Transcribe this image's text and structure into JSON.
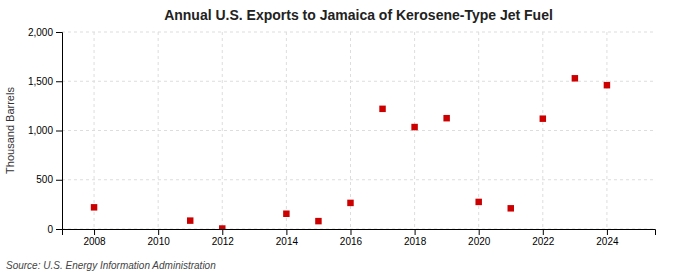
{
  "chart_data": {
    "type": "scatter",
    "title": "Annual U.S. Exports to Jamaica of Kerosene-Type Jet Fuel",
    "ylabel": "Thousand Barrels",
    "source": "Source: U.S. Energy Information Administration",
    "x": [
      2008,
      2011,
      2012,
      2014,
      2015,
      2016,
      2017,
      2018,
      2019,
      2020,
      2021,
      2022,
      2023,
      2024
    ],
    "values": [
      220,
      85,
      5,
      155,
      80,
      265,
      1220,
      1035,
      1125,
      275,
      210,
      1120,
      1530,
      1460
    ],
    "color": "#cc0000",
    "marker": "square",
    "xlim": [
      2007,
      2025.5
    ],
    "ylim": [
      0,
      2000
    ],
    "xticks": [
      2008,
      2010,
      2012,
      2014,
      2016,
      2018,
      2020,
      2022,
      2024
    ],
    "yticks": [
      0,
      500,
      {
        "value": 1000,
        "label": "1,000"
      },
      {
        "value": 1500,
        "label": "1,500"
      },
      {
        "value": 2000,
        "label": "2,000"
      }
    ],
    "grid": true
  }
}
